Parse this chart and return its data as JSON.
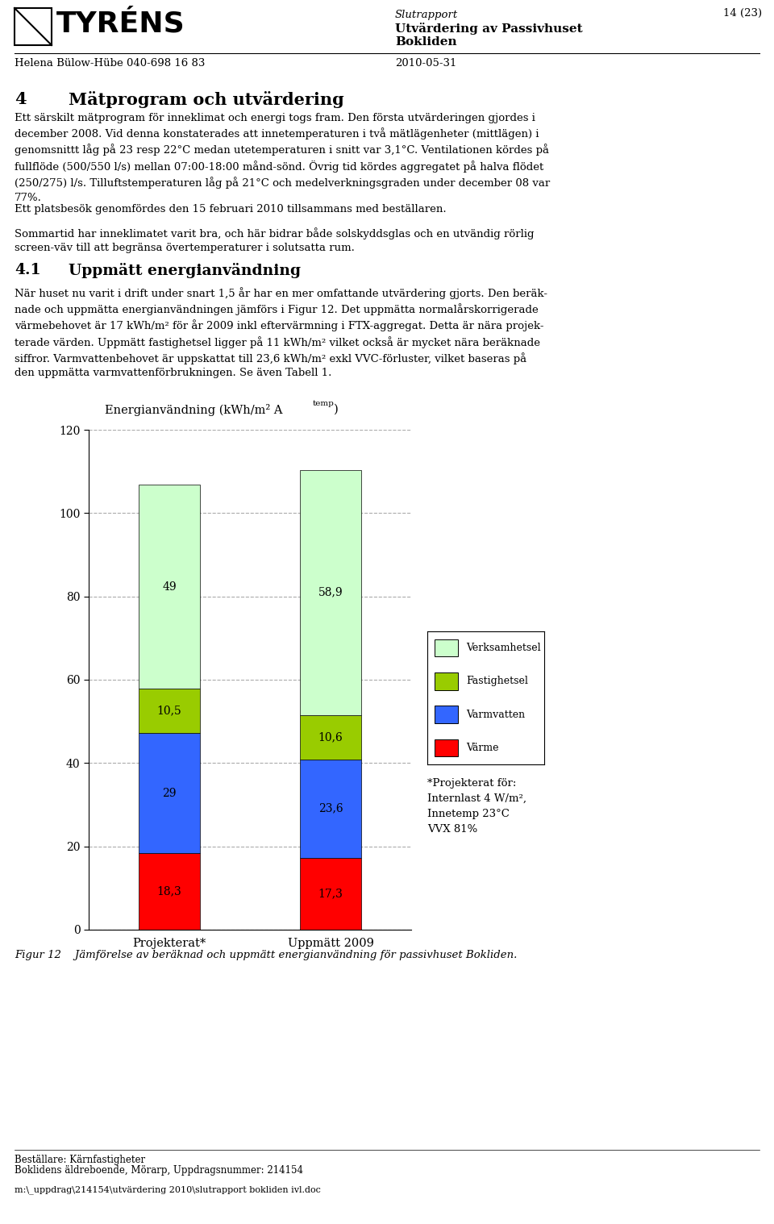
{
  "page_number": "14 (23)",
  "contact": "Helena Bülow-Hübe 040-698 16 83",
  "date": "2010-05-31",
  "bg_color": "#ffffff",
  "categories": [
    "Projekterat*",
    "Uppmätt 2009"
  ],
  "plot_order": [
    "Värme",
    "Varmvatten",
    "Fastighetsel",
    "Verksamhetsel"
  ],
  "plot_colors": {
    "Värme": "#ff0000",
    "Varmvatten": "#3366ff",
    "Fastighetsel": "#99cc00",
    "Verksamhetsel": "#ccffcc"
  },
  "plot_values": {
    "Värme": [
      18.3,
      17.3
    ],
    "Varmvatten": [
      29,
      23.6
    ],
    "Fastighetsel": [
      10.5,
      10.6
    ],
    "Verksamhetsel": [
      49,
      58.9
    ]
  },
  "plot_labels": {
    "Värme": [
      "18,3",
      "17,3"
    ],
    "Varmvatten": [
      "29",
      "23,6"
    ],
    "Fastighetsel": [
      "10,5",
      "10,6"
    ],
    "Verksamhetsel": [
      "49",
      "58,9"
    ]
  },
  "ylim": [
    0,
    120
  ],
  "yticks": [
    0,
    20,
    40,
    60,
    80,
    100,
    120
  ],
  "legend_items": [
    [
      "Verksamhetsel",
      "#ccffcc"
    ],
    [
      "Fastighetsel",
      "#99cc00"
    ],
    [
      "Varmvatten",
      "#3366ff"
    ],
    [
      "Värme",
      "#ff0000"
    ]
  ],
  "note_lines": [
    "*Projekterat för:",
    "Internlast 4 W/m²,",
    "Innetemp 23°C",
    "VVX 81%"
  ],
  "fig_caption": "Figur 12    Jämförelse av beräknad och uppmätt energianvändning för passivhuset Bokliden.",
  "footer_line1": "Beställare: Kärnfastigheter",
  "footer_line2": "Boklidens äldreboende, Mörarp, Uppdragsnummer: 214154",
  "footer_line3": "m:\\_uppdrag\\214154\\utvärdering 2010\\slutrapport bokliden ivl.doc",
  "header_italic": "Slutrapport",
  "header_bold1": "Utvärdering av Passivhuset",
  "header_bold2": "Bokliden",
  "p1_line1": "4       Mätprogram och utvärdering",
  "p_body1": "Ett särskilt mätprogram för inneklimat och energi togs fram. Den första utvärderingen gjordes i december 2008. Vid denna\nkonstaterades att innetemperaturen i två mätlägenheter (mittlägen) i genomsnittt låg på 23 resp 22°C medan\nutetemperaturen i snitt var 3,1°C. Ventilationen kördes på fullflöde (500/550 l/s) mellan 07:00-18:00 månd-sönd. Övrig\ntid kördes aggregatet på halva flödet (250/275) l/s. Tilluftstemperaturen låg på 21°C och medelverkningsgraden\nunder december 08 var 77%.",
  "p_body2": "Ett platsbesök genomfördes den 15 februari 2010 tillsammans med beställaren.",
  "p_body3": "Sommartid har inneklimatet varit bra, och här bidrar både solskyddsglas och en utvändig rörlig screen-väv till att\nbegränsa övertemperaturer i solutsatta rum.",
  "p_sub1": "4.1        Uppmätt energianvändning",
  "p_body4": "När huset nu varit i drift under snart 1,5 år har en mer omfattande utvärdering gjorts. Den beräk-\nnade och uppmätta energianvändningen jämförs i Figur 12. Det uppmätta normalårskorrigerade\nvärmebehovet är 17 kWh/m² för år 2009 inkl eftervärmning i FTX-aggregat. Detta är nära projek-\nterade värden. Uppmätt fastighetsel ligger på 11 kWh/m² vilket också är mycket nära beräknade\nsiffror. Varmvattenbehovet är uppskattat till 23,6 kWh/m² exkl VVC-förluster, vilket baseras på\nden uppmätta varmvattenförbrukningen. Se även Tabell 1."
}
